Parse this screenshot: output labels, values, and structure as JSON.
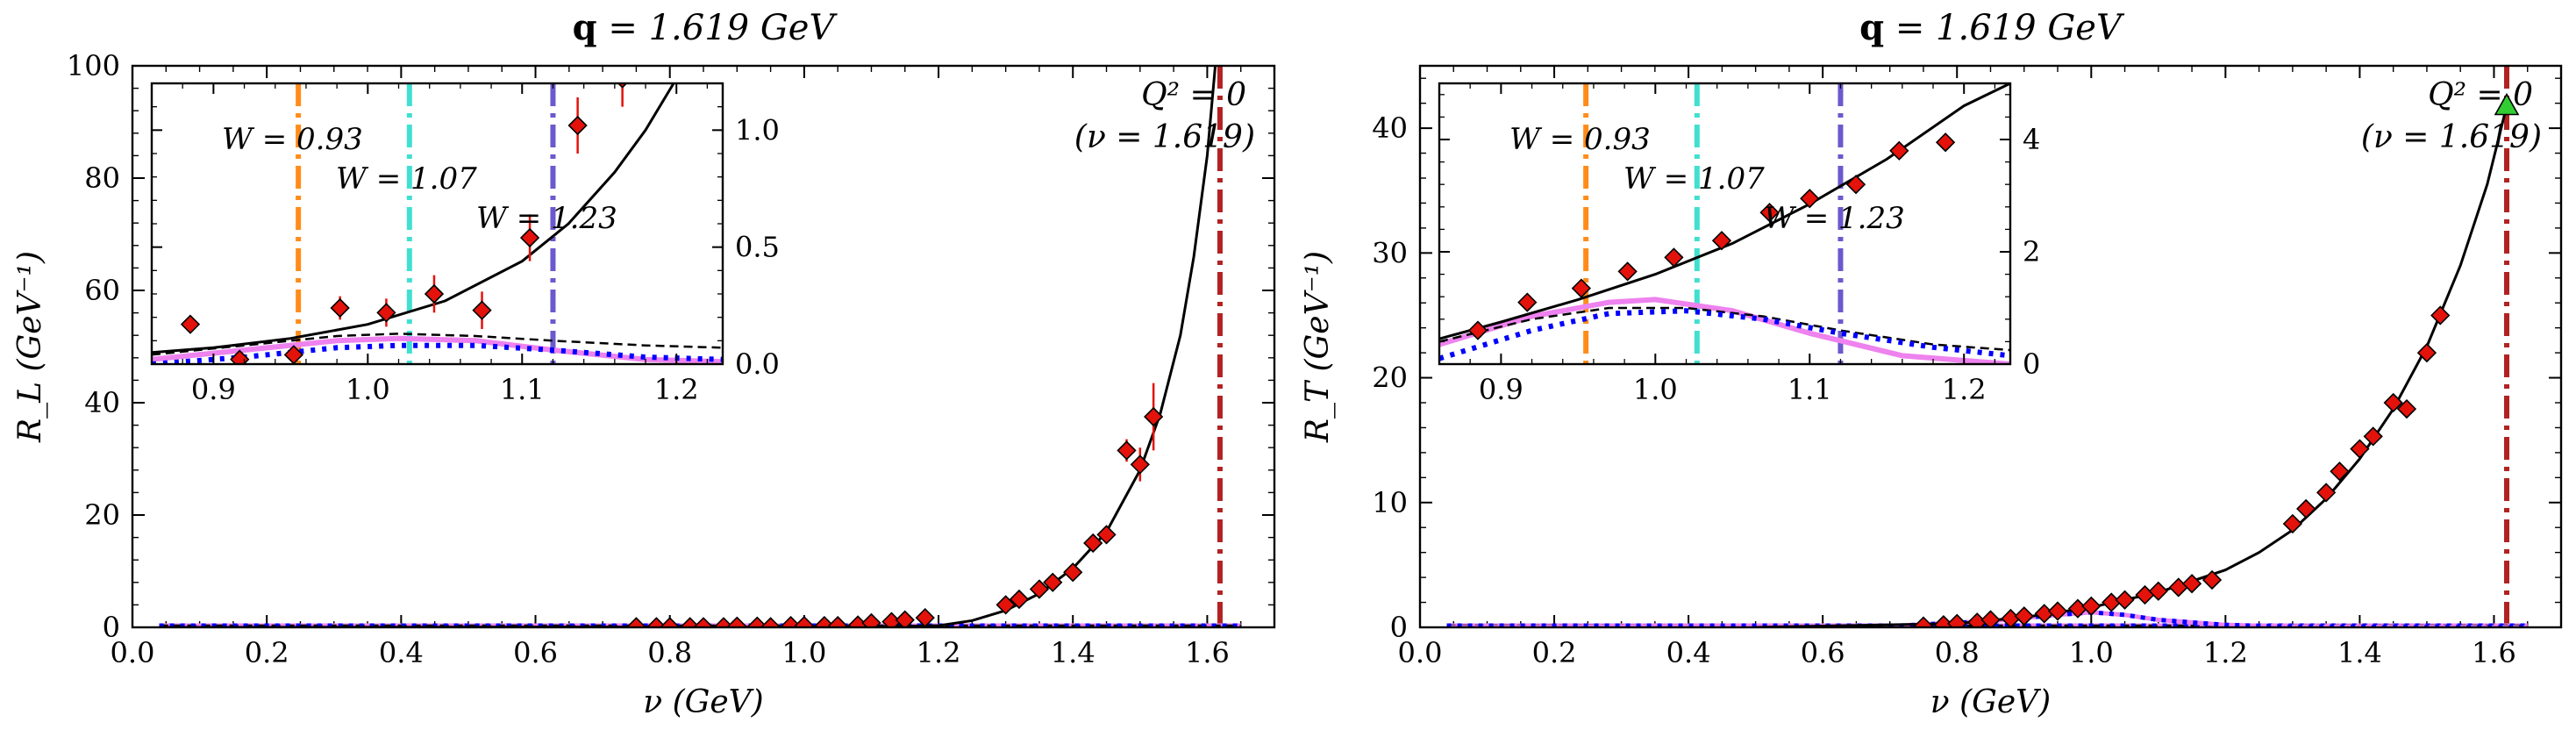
{
  "figure": {
    "panels": [
      {
        "title_bold": "q",
        "title_rest": " = 1.619 GeV"
      },
      {
        "title_bold": "q",
        "title_rest": " = 1.619 GeV"
      }
    ]
  },
  "chart_data": [
    {
      "type": "scatter",
      "title": "q = 1.619 GeV",
      "xlabel": "ν (GeV)",
      "ylabel": "R_L (GeV⁻¹)",
      "xlim": [
        0.0,
        1.7
      ],
      "ylim": [
        0,
        100
      ],
      "xticks": [
        "0.0",
        "0.2",
        "0.4",
        "0.6",
        "0.8",
        "1.0",
        "1.2",
        "1.4",
        "1.6"
      ],
      "yticks": [
        "0",
        "20",
        "40",
        "60",
        "80",
        "100"
      ],
      "q2_label": [
        "Q² = 0",
        "(ν = 1.619)"
      ],
      "q2_line_x": 1.619,
      "data_points": [
        {
          "x": 0.75,
          "y": 0.1,
          "err": 0.2
        },
        {
          "x": 0.78,
          "y": 0.1,
          "err": 0.2
        },
        {
          "x": 0.8,
          "y": 0.1,
          "err": 0.2
        },
        {
          "x": 0.83,
          "y": 0.1,
          "err": 0.2
        },
        {
          "x": 0.85,
          "y": 0.1,
          "err": 0.2
        },
        {
          "x": 0.88,
          "y": 0.1,
          "err": 0.2
        },
        {
          "x": 0.9,
          "y": 0.2,
          "err": 0.2
        },
        {
          "x": 0.93,
          "y": 0.2,
          "err": 0.2
        },
        {
          "x": 0.95,
          "y": 0.1,
          "err": 0.2
        },
        {
          "x": 0.98,
          "y": 0.3,
          "err": 0.2
        },
        {
          "x": 1.0,
          "y": 0.3,
          "err": 0.2
        },
        {
          "x": 1.03,
          "y": 0.3,
          "err": 0.2
        },
        {
          "x": 1.05,
          "y": 0.3,
          "err": 0.2
        },
        {
          "x": 1.08,
          "y": 0.4,
          "err": 0.2
        },
        {
          "x": 1.1,
          "y": 0.8,
          "err": 0.3
        },
        {
          "x": 1.13,
          "y": 1.0,
          "err": 0.3
        },
        {
          "x": 1.15,
          "y": 1.3,
          "err": 0.3
        },
        {
          "x": 1.18,
          "y": 1.7,
          "err": 0.3
        },
        {
          "x": 1.3,
          "y": 4.0,
          "err": 0.5
        },
        {
          "x": 1.32,
          "y": 5.0,
          "err": 0.5
        },
        {
          "x": 1.35,
          "y": 6.8,
          "err": 0.6
        },
        {
          "x": 1.37,
          "y": 8.0,
          "err": 0.6
        },
        {
          "x": 1.4,
          "y": 9.8,
          "err": 0.7
        },
        {
          "x": 1.43,
          "y": 15.0,
          "err": 1.0
        },
        {
          "x": 1.45,
          "y": 16.5,
          "err": 1.0
        },
        {
          "x": 1.48,
          "y": 31.5,
          "err": 2.0
        },
        {
          "x": 1.5,
          "y": 29.0,
          "err": 3.0
        },
        {
          "x": 1.52,
          "y": 37.5,
          "err": 6.0
        }
      ],
      "fit_curve": [
        {
          "x": 0.04,
          "y": 0.0
        },
        {
          "x": 1.1,
          "y": 0.1
        },
        {
          "x": 1.2,
          "y": 0.3
        },
        {
          "x": 1.25,
          "y": 1.2
        },
        {
          "x": 1.3,
          "y": 3.0
        },
        {
          "x": 1.35,
          "y": 6.0
        },
        {
          "x": 1.4,
          "y": 10.5
        },
        {
          "x": 1.45,
          "y": 17.0
        },
        {
          "x": 1.5,
          "y": 28.0
        },
        {
          "x": 1.53,
          "y": 38.0
        },
        {
          "x": 1.56,
          "y": 52.0
        },
        {
          "x": 1.58,
          "y": 66.0
        },
        {
          "x": 1.6,
          "y": 84.0
        },
        {
          "x": 1.612,
          "y": 100.0
        }
      ],
      "baseline_y": 0.3,
      "inset": {
        "xlim": [
          0.86,
          1.23
        ],
        "ylim": [
          0.0,
          1.2
        ],
        "xticks": [
          "0.9",
          "1.0",
          "1.1",
          "1.2"
        ],
        "yticks": [
          "0.0",
          "0.5",
          "1.0"
        ],
        "w_lines": [
          {
            "x": 0.955,
            "label": "W = 0.93",
            "color": "#ff8c1a"
          },
          {
            "x": 1.027,
            "label": "W = 1.07",
            "color": "#40e0d0"
          },
          {
            "x": 1.12,
            "label": "W = 1.23",
            "color": "#6a5acd"
          }
        ],
        "points": [
          {
            "x": 0.885,
            "y": 0.17,
            "err": 0.0
          },
          {
            "x": 0.917,
            "y": 0.02,
            "err": 0.0
          },
          {
            "x": 0.952,
            "y": 0.04,
            "err": 0.0
          },
          {
            "x": 0.982,
            "y": 0.24,
            "err": 0.05
          },
          {
            "x": 1.012,
            "y": 0.22,
            "err": 0.06
          },
          {
            "x": 1.043,
            "y": 0.3,
            "err": 0.08
          },
          {
            "x": 1.074,
            "y": 0.23,
            "err": 0.08
          },
          {
            "x": 1.105,
            "y": 0.54,
            "err": 0.1
          },
          {
            "x": 1.136,
            "y": 1.02,
            "err": 0.12
          },
          {
            "x": 1.165,
            "y": 1.22,
            "err": 0.12
          }
        ],
        "total": [
          {
            "x": 0.86,
            "y": 0.05
          },
          {
            "x": 0.9,
            "y": 0.07
          },
          {
            "x": 0.95,
            "y": 0.11
          },
          {
            "x": 1.0,
            "y": 0.17
          },
          {
            "x": 1.05,
            "y": 0.27
          },
          {
            "x": 1.1,
            "y": 0.44
          },
          {
            "x": 1.13,
            "y": 0.6
          },
          {
            "x": 1.16,
            "y": 0.82
          },
          {
            "x": 1.18,
            "y": 1.0
          },
          {
            "x": 1.2,
            "y": 1.22
          }
        ],
        "dashed": [
          {
            "x": 0.86,
            "y": 0.04
          },
          {
            "x": 0.92,
            "y": 0.08
          },
          {
            "x": 0.98,
            "y": 0.12
          },
          {
            "x": 1.02,
            "y": 0.13
          },
          {
            "x": 1.07,
            "y": 0.12
          },
          {
            "x": 1.12,
            "y": 0.1
          },
          {
            "x": 1.18,
            "y": 0.08
          },
          {
            "x": 1.23,
            "y": 0.07
          }
        ],
        "magenta": [
          {
            "x": 0.86,
            "y": 0.02
          },
          {
            "x": 0.92,
            "y": 0.06
          },
          {
            "x": 0.98,
            "y": 0.1
          },
          {
            "x": 1.02,
            "y": 0.11
          },
          {
            "x": 1.07,
            "y": 0.1
          },
          {
            "x": 1.12,
            "y": 0.06
          },
          {
            "x": 1.18,
            "y": 0.02
          },
          {
            "x": 1.23,
            "y": 0.01
          }
        ],
        "dotted": [
          {
            "x": 0.86,
            "y": 0.0
          },
          {
            "x": 0.92,
            "y": 0.03
          },
          {
            "x": 0.98,
            "y": 0.07
          },
          {
            "x": 1.02,
            "y": 0.08
          },
          {
            "x": 1.07,
            "y": 0.08
          },
          {
            "x": 1.12,
            "y": 0.06
          },
          {
            "x": 1.18,
            "y": 0.03
          },
          {
            "x": 1.23,
            "y": 0.02
          }
        ]
      }
    },
    {
      "type": "scatter",
      "title": "q = 1.619 GeV",
      "xlabel": "ν (GeV)",
      "ylabel": "R_T (GeV⁻¹)",
      "xlim": [
        0.0,
        1.7
      ],
      "ylim": [
        0,
        45
      ],
      "xticks": [
        "0.0",
        "0.2",
        "0.4",
        "0.6",
        "0.8",
        "1.0",
        "1.2",
        "1.4",
        "1.6"
      ],
      "yticks": [
        "0",
        "10",
        "20",
        "30",
        "40"
      ],
      "q2_label": [
        "Q² = 0",
        "(ν = 1.619)"
      ],
      "q2_line_x": 1.619,
      "photon_point": {
        "x": 1.619,
        "y": 41.8
      },
      "data_points": [
        {
          "x": 0.75,
          "y": 0.1,
          "err": 0.1
        },
        {
          "x": 0.78,
          "y": 0.2,
          "err": 0.1
        },
        {
          "x": 0.8,
          "y": 0.3,
          "err": 0.1
        },
        {
          "x": 0.83,
          "y": 0.4,
          "err": 0.1
        },
        {
          "x": 0.85,
          "y": 0.6,
          "err": 0.1
        },
        {
          "x": 0.88,
          "y": 0.7,
          "err": 0.1
        },
        {
          "x": 0.9,
          "y": 0.9,
          "err": 0.1
        },
        {
          "x": 0.93,
          "y": 1.1,
          "err": 0.1
        },
        {
          "x": 0.95,
          "y": 1.3,
          "err": 0.1
        },
        {
          "x": 0.98,
          "y": 1.5,
          "err": 0.1
        },
        {
          "x": 1.0,
          "y": 1.7,
          "err": 0.1
        },
        {
          "x": 1.03,
          "y": 2.0,
          "err": 0.1
        },
        {
          "x": 1.05,
          "y": 2.2,
          "err": 0.1
        },
        {
          "x": 1.08,
          "y": 2.6,
          "err": 0.1
        },
        {
          "x": 1.1,
          "y": 2.9,
          "err": 0.1
        },
        {
          "x": 1.13,
          "y": 3.2,
          "err": 0.2
        },
        {
          "x": 1.15,
          "y": 3.5,
          "err": 0.2
        },
        {
          "x": 1.18,
          "y": 3.8,
          "err": 0.2
        },
        {
          "x": 1.3,
          "y": 8.3,
          "err": 0.3
        },
        {
          "x": 1.32,
          "y": 9.5,
          "err": 0.3
        },
        {
          "x": 1.35,
          "y": 10.8,
          "err": 0.3
        },
        {
          "x": 1.37,
          "y": 12.5,
          "err": 0.3
        },
        {
          "x": 1.4,
          "y": 14.3,
          "err": 0.3
        },
        {
          "x": 1.42,
          "y": 15.3,
          "err": 0.3
        },
        {
          "x": 1.45,
          "y": 18.0,
          "err": 0.4
        },
        {
          "x": 1.47,
          "y": 17.5,
          "err": 0.4
        },
        {
          "x": 1.5,
          "y": 22.0,
          "err": 0.4
        },
        {
          "x": 1.52,
          "y": 25.0,
          "err": 0.4
        }
      ],
      "fit_curve": [
        {
          "x": 0.5,
          "y": 0.0
        },
        {
          "x": 0.8,
          "y": 0.3
        },
        {
          "x": 0.9,
          "y": 0.8
        },
        {
          "x": 1.0,
          "y": 1.6
        },
        {
          "x": 1.1,
          "y": 2.8
        },
        {
          "x": 1.2,
          "y": 4.6
        },
        {
          "x": 1.25,
          "y": 6.0
        },
        {
          "x": 1.3,
          "y": 7.8
        },
        {
          "x": 1.35,
          "y": 10.3
        },
        {
          "x": 1.4,
          "y": 13.5
        },
        {
          "x": 1.45,
          "y": 17.5
        },
        {
          "x": 1.5,
          "y": 22.5
        },
        {
          "x": 1.55,
          "y": 29.0
        },
        {
          "x": 1.59,
          "y": 35.5
        },
        {
          "x": 1.619,
          "y": 41.8
        }
      ],
      "bump_total": [
        {
          "x": 0.04,
          "y": 0.0
        },
        {
          "x": 0.7,
          "y": 0.1
        },
        {
          "x": 0.85,
          "y": 0.5
        },
        {
          "x": 0.95,
          "y": 1.0
        },
        {
          "x": 1.0,
          "y": 1.2
        },
        {
          "x": 1.05,
          "y": 1.0
        },
        {
          "x": 1.1,
          "y": 0.6
        },
        {
          "x": 1.2,
          "y": 0.2
        },
        {
          "x": 1.3,
          "y": 0.05
        },
        {
          "x": 1.65,
          "y": 0.0
        }
      ],
      "inset": {
        "xlim": [
          0.86,
          1.23
        ],
        "ylim": [
          0.0,
          5.0
        ],
        "xticks": [
          "0.9",
          "1.0",
          "1.1",
          "1.2"
        ],
        "yticks": [
          "0",
          "2",
          "4"
        ],
        "w_lines": [
          {
            "x": 0.955,
            "label": "W = 0.93",
            "color": "#ff8c1a"
          },
          {
            "x": 1.027,
            "label": "W = 1.07",
            "color": "#40e0d0"
          },
          {
            "x": 1.12,
            "label": "W = 1.23",
            "color": "#6a5acd"
          }
        ],
        "points": [
          {
            "x": 0.885,
            "y": 0.6,
            "err": 0.0
          },
          {
            "x": 0.917,
            "y": 1.1,
            "err": 0.0
          },
          {
            "x": 0.952,
            "y": 1.35,
            "err": 0.0
          },
          {
            "x": 0.982,
            "y": 1.65,
            "err": 0.0
          },
          {
            "x": 1.012,
            "y": 1.9,
            "err": 0.0
          },
          {
            "x": 1.043,
            "y": 2.2,
            "err": 0.0
          },
          {
            "x": 1.074,
            "y": 2.7,
            "err": 0.0
          },
          {
            "x": 1.1,
            "y": 2.95,
            "err": 0.0
          },
          {
            "x": 1.13,
            "y": 3.2,
            "err": 0.0
          },
          {
            "x": 1.158,
            "y": 3.8,
            "err": 0.0
          },
          {
            "x": 1.188,
            "y": 3.95,
            "err": 0.0
          }
        ],
        "total": [
          {
            "x": 0.86,
            "y": 0.45
          },
          {
            "x": 0.9,
            "y": 0.75
          },
          {
            "x": 0.95,
            "y": 1.15
          },
          {
            "x": 1.0,
            "y": 1.6
          },
          {
            "x": 1.05,
            "y": 2.15
          },
          {
            "x": 1.1,
            "y": 2.85
          },
          {
            "x": 1.15,
            "y": 3.65
          },
          {
            "x": 1.2,
            "y": 4.6
          },
          {
            "x": 1.23,
            "y": 5.0
          }
        ],
        "dashed": [
          {
            "x": 0.86,
            "y": 0.4
          },
          {
            "x": 0.92,
            "y": 0.8
          },
          {
            "x": 0.97,
            "y": 1.0
          },
          {
            "x": 1.02,
            "y": 1.0
          },
          {
            "x": 1.07,
            "y": 0.85
          },
          {
            "x": 1.12,
            "y": 0.6
          },
          {
            "x": 1.18,
            "y": 0.35
          },
          {
            "x": 1.23,
            "y": 0.25
          }
        ],
        "magenta": [
          {
            "x": 0.86,
            "y": 0.35
          },
          {
            "x": 0.92,
            "y": 0.85
          },
          {
            "x": 0.97,
            "y": 1.1
          },
          {
            "x": 1.0,
            "y": 1.15
          },
          {
            "x": 1.05,
            "y": 0.95
          },
          {
            "x": 1.1,
            "y": 0.55
          },
          {
            "x": 1.16,
            "y": 0.15
          },
          {
            "x": 1.23,
            "y": 0.0
          }
        ],
        "dotted": [
          {
            "x": 0.86,
            "y": 0.1
          },
          {
            "x": 0.92,
            "y": 0.6
          },
          {
            "x": 0.97,
            "y": 0.9
          },
          {
            "x": 1.02,
            "y": 0.95
          },
          {
            "x": 1.07,
            "y": 0.8
          },
          {
            "x": 1.12,
            "y": 0.55
          },
          {
            "x": 1.18,
            "y": 0.3
          },
          {
            "x": 1.23,
            "y": 0.15
          }
        ]
      }
    }
  ],
  "colors": {
    "data_marker": "#e3120b",
    "fit_curve": "#000000",
    "dashed_curve": "#000000",
    "magenta_curve": "#ee82ee",
    "dotted_curve": "#0000ff",
    "q2_line": "#b22222",
    "photon_point": "#32cd32"
  }
}
